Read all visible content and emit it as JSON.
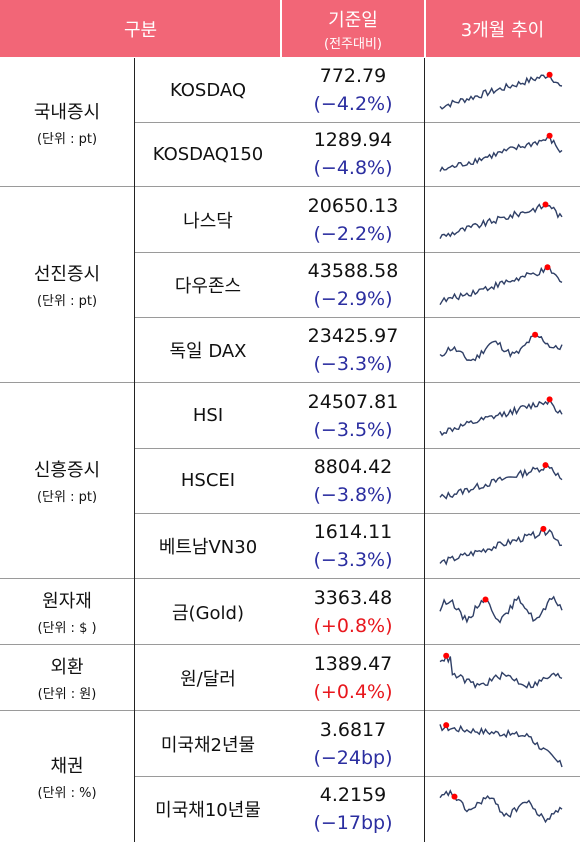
{
  "header": {
    "col_category": "구분",
    "col_value": "기준일",
    "col_value_sub": "(전주대비)",
    "col_trend": "3개월 추이"
  },
  "groups": [
    {
      "name": "국내증시",
      "unit": "(단위 : pt)"
    },
    {
      "name": "선진증시",
      "unit": "(단위 : pt)"
    },
    {
      "name": "신흥증시",
      "unit": "(단위 : pt)"
    },
    {
      "name": "원자재",
      "unit": "(단위 : $ )"
    },
    {
      "name": "외환",
      "unit": "(단위 : 원)"
    },
    {
      "name": "채권",
      "unit": "(단위 : %)"
    }
  ],
  "rows": [
    {
      "name": "KOSDAQ",
      "value": "772.79",
      "change": "(−4.2%)",
      "direction": "down"
    },
    {
      "name": "KOSDAQ150",
      "value": "1289.94",
      "change": "(−4.8%)",
      "direction": "down"
    },
    {
      "name": "나스닥",
      "value": "20650.13",
      "change": "(−2.2%)",
      "direction": "down"
    },
    {
      "name": "다우존스",
      "value": "43588.58",
      "change": "(−2.9%)",
      "direction": "down"
    },
    {
      "name": "독일 DAX",
      "value": "23425.97",
      "change": "(−3.3%)",
      "direction": "down"
    },
    {
      "name": "HSI",
      "value": "24507.81",
      "change": "(−3.5%)",
      "direction": "down"
    },
    {
      "name": "HSCEI",
      "value": "8804.42",
      "change": "(−3.8%)",
      "direction": "down"
    },
    {
      "name": "베트남VN30",
      "value": "1614.11",
      "change": "(−3.3%)",
      "direction": "down"
    },
    {
      "name": "금(Gold)",
      "value": "3363.48",
      "change": "(+0.8%)",
      "direction": "up"
    },
    {
      "name": "원/달러",
      "value": "1389.47",
      "change": "(+0.4%)",
      "direction": "up"
    },
    {
      "name": "미국채2년물",
      "value": "3.6817",
      "change": "(−24bp)",
      "direction": "down"
    },
    {
      "name": "미국채10년물",
      "value": "4.2159",
      "change": "(−17bp)",
      "direction": "down"
    }
  ],
  "colors": {
    "header_bg": "#f26677",
    "negative": "#2b2ea0",
    "positive": "#e8171d",
    "sparkline": "#2f3f66",
    "peak_marker": "#ff0000"
  },
  "sparklines": [
    {
      "trend": "up_then_drop",
      "peak_at": 0.88
    },
    {
      "trend": "up_then_drop",
      "peak_at": 0.87
    },
    {
      "trend": "up_then_drop",
      "peak_at": 0.92
    },
    {
      "trend": "up_then_drop",
      "peak_at": 0.88
    },
    {
      "trend": "volatile_up",
      "peak_at": 0.72
    },
    {
      "trend": "up_then_drop",
      "peak_at": 0.9
    },
    {
      "trend": "up_then_drop",
      "peak_at": 0.9
    },
    {
      "trend": "up_then_drop",
      "peak_at": 0.9
    },
    {
      "trend": "volatile_flat",
      "peak_at": 0.42
    },
    {
      "trend": "high_then_flat",
      "peak_at": 0.07
    },
    {
      "trend": "high_then_down",
      "peak_at": 0.08
    },
    {
      "trend": "volatile_down",
      "peak_at": 0.18
    }
  ]
}
